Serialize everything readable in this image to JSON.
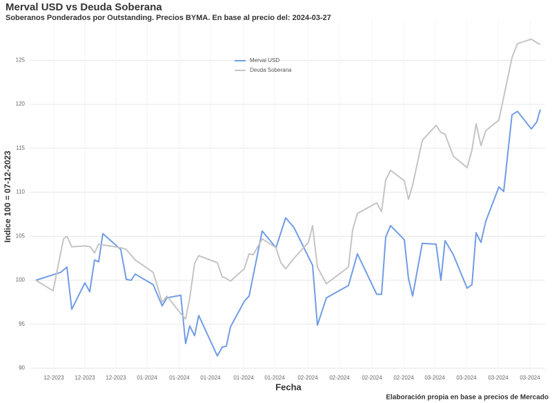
{
  "chart_data": {
    "type": "line",
    "title": "Merval USD vs Deuda Soberana",
    "subtitle": "Soberanos Ponderados por Outstanding. Precios BYMA. En base al precio del: 2024-03-27",
    "x_label": "Fecha",
    "y_label": "Indice 100 = 07-12-2023",
    "caption": "Elaboración propia en base a precios de Mercado",
    "xlim": [
      -1.0,
      73.8
    ],
    "xticks": [
      {
        "value": 2.6,
        "label": "12-2023"
      },
      {
        "value": 7.1,
        "label": "12-2023"
      },
      {
        "value": 11.6,
        "label": "12-2023"
      },
      {
        "value": 16.1,
        "label": "01-2024"
      },
      {
        "value": 20.8,
        "label": "01-2024"
      },
      {
        "value": 25.3,
        "label": "01-2024"
      },
      {
        "value": 30.1,
        "label": "01-2024"
      },
      {
        "value": 34.6,
        "label": "01-2024"
      },
      {
        "value": 39.4,
        "label": "02-2024"
      },
      {
        "value": 44.0,
        "label": "02-2024"
      },
      {
        "value": 48.7,
        "label": "02-2024"
      },
      {
        "value": 53.3,
        "label": "02-2024"
      },
      {
        "value": 57.8,
        "label": "03-2024"
      },
      {
        "value": 62.4,
        "label": "03-2024"
      },
      {
        "value": 67.0,
        "label": "03-2024"
      },
      {
        "value": 71.6,
        "label": "03-2024"
      }
    ],
    "ylim": [
      89.5,
      129.5
    ],
    "yticks": [
      90,
      95,
      100,
      105,
      110,
      115,
      120,
      125
    ],
    "grid": true,
    "legend": "top",
    "series": [
      {
        "name": "Merval USD",
        "color": "#6f9be6",
        "x": [
          0,
          3.6,
          4.5,
          5.2,
          7.1,
          7.8,
          8.5,
          9.1,
          9.7,
          12.3,
          13.1,
          13.8,
          14.4,
          17,
          18.3,
          19,
          21,
          21.7,
          22.3,
          23,
          23.6,
          26.3,
          27,
          27.6,
          28.2,
          30.2,
          30.9,
          32.8,
          34.8,
          36.2,
          37.4,
          40.1,
          40.8,
          42.1,
          45.3,
          46.6,
          49.4,
          50.1,
          50.7,
          51.4,
          53.4,
          54,
          54.6,
          56,
          58,
          58.7,
          59.3,
          60.5,
          62.5,
          63.2,
          63.8,
          64.5,
          65.2,
          67.1,
          67.8,
          69,
          69.8,
          71.8,
          72.6,
          73.1
        ],
        "values": [
          100,
          100.9,
          101.5,
          96.7,
          99.7,
          98.7,
          102.3,
          102.1,
          105.3,
          103.5,
          100.1,
          100,
          100.7,
          99.5,
          97.1,
          98,
          98.3,
          92.8,
          94.8,
          93.7,
          96,
          91.4,
          92.4,
          92.5,
          94.7,
          97.6,
          98.2,
          105.6,
          103.7,
          107.1,
          106,
          101.7,
          94.9,
          98,
          99.4,
          103,
          98.4,
          98.4,
          104.9,
          106.2,
          104.6,
          100.2,
          98.2,
          104.2,
          104.1,
          100,
          104.5,
          102.9,
          99.1,
          99.5,
          105.4,
          104.3,
          106.7,
          110.6,
          110.1,
          118.8,
          119.2,
          117.2,
          118,
          119.4
        ]
      },
      {
        "name": "Deuda Soberana",
        "color": "#c4c4c4",
        "x": [
          0,
          2.5,
          4,
          4.5,
          5.2,
          7.1,
          7.9,
          8.5,
          9.1,
          12.3,
          13.1,
          14.4,
          17,
          18.3,
          19,
          21,
          21.7,
          22.3,
          23,
          23.6,
          26.3,
          27,
          27.6,
          28.2,
          30.2,
          30.9,
          31.5,
          32.8,
          34.8,
          35.5,
          36.2,
          37.4,
          39.5,
          40.1,
          40.8,
          42.1,
          45.3,
          45.9,
          46.6,
          49.4,
          50.1,
          50.7,
          51.4,
          53.4,
          54,
          54.6,
          56,
          58,
          58.7,
          59.3,
          60.5,
          62.5,
          63.2,
          63.8,
          64.5,
          65.2,
          67.1,
          69,
          69.8,
          71.8,
          72.6,
          73.1
        ],
        "values": [
          100,
          98.8,
          104.7,
          105,
          103.8,
          103.9,
          103.8,
          103.1,
          104.1,
          103.7,
          103.5,
          102.3,
          100.9,
          97.5,
          98.2,
          96.2,
          95.6,
          98,
          101.9,
          102.8,
          102,
          100.4,
          100.2,
          99.9,
          101.3,
          103,
          102.9,
          104.7,
          103.7,
          102,
          101.3,
          102.5,
          104.3,
          106.2,
          101.5,
          99.6,
          101.5,
          105.7,
          107.6,
          108.8,
          107.8,
          111.4,
          112.5,
          111.3,
          109.2,
          110.8,
          115.9,
          117.6,
          116.8,
          116.6,
          114.1,
          112.8,
          114.8,
          117.8,
          115.3,
          117,
          118.2,
          125.3,
          126.9,
          127.4,
          127,
          126.8
        ]
      }
    ]
  }
}
